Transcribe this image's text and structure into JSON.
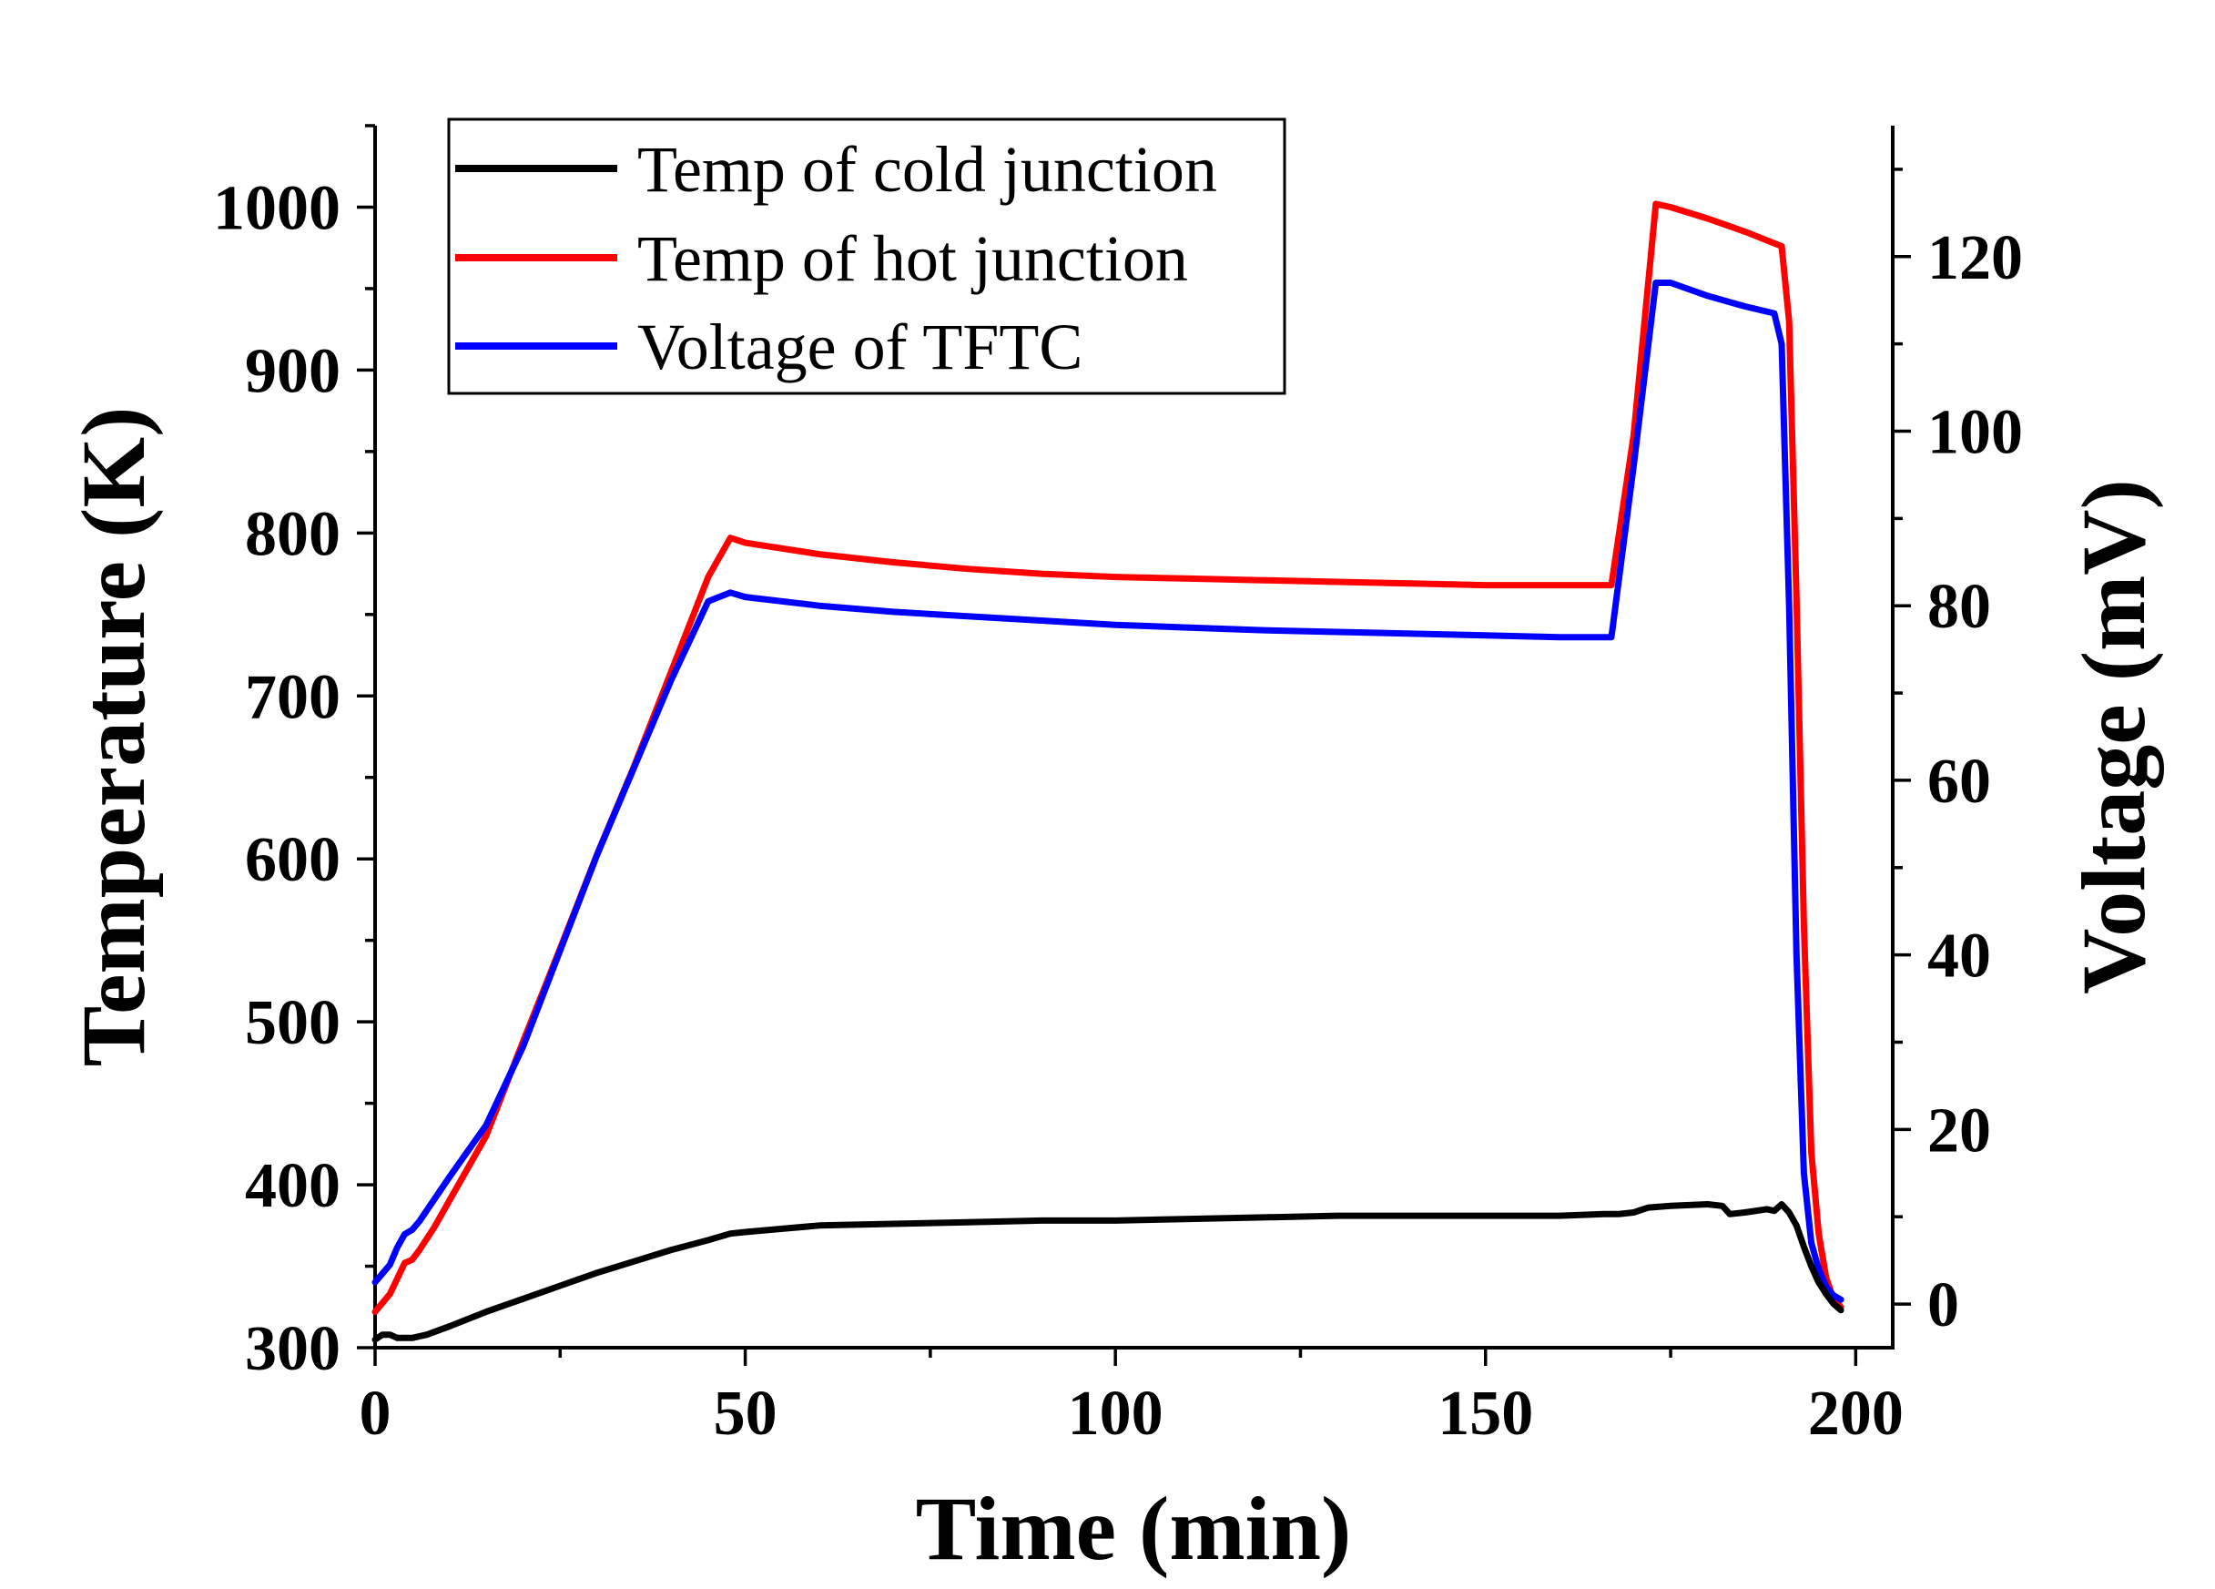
{
  "chart_data": {
    "type": "line",
    "xlabel": "Time (min)",
    "ylabel": "Temperature (K)",
    "y2label": "Voltage (mV)",
    "xlim": [
      0,
      205
    ],
    "ylim": [
      300,
      1050
    ],
    "y2lim": [
      -5,
      135
    ],
    "xticks": [
      0,
      50,
      100,
      150,
      200
    ],
    "yticks": [
      300,
      400,
      500,
      600,
      700,
      800,
      900,
      1000
    ],
    "y2ticks": [
      0,
      20,
      40,
      60,
      80,
      100,
      120
    ],
    "legend_position": "top-left",
    "grid": false,
    "series": [
      {
        "name": "Temp of cold junction",
        "axis": "left",
        "color": "#000000",
        "x": [
          0,
          1,
          2,
          3,
          5,
          7,
          10,
          15,
          20,
          25,
          30,
          35,
          40,
          45,
          48,
          50,
          55,
          60,
          70,
          80,
          90,
          100,
          110,
          120,
          130,
          140,
          150,
          160,
          166,
          168,
          170,
          172,
          175,
          180,
          182,
          183,
          185,
          188,
          189,
          190,
          191,
          192,
          193,
          194,
          195,
          196,
          197,
          198
        ],
        "y": [
          305,
          308,
          308,
          306,
          306,
          308,
          313,
          322,
          330,
          338,
          346,
          353,
          360,
          366,
          370,
          371,
          373,
          375,
          376,
          377,
          378,
          378,
          379,
          380,
          381,
          381,
          381,
          381,
          382,
          382,
          383,
          386,
          387,
          388,
          387,
          382,
          383,
          385,
          384,
          388,
          383,
          375,
          362,
          350,
          340,
          333,
          327,
          323
        ]
      },
      {
        "name": "Temp of hot junction",
        "axis": "left",
        "color": "#ff0000",
        "x": [
          0,
          2,
          4,
          5,
          6,
          8,
          10,
          15,
          20,
          25,
          30,
          35,
          40,
          45,
          48,
          50,
          60,
          70,
          80,
          90,
          100,
          110,
          120,
          130,
          140,
          150,
          160,
          167,
          170,
          173,
          175,
          180,
          185,
          190,
          191,
          192,
          193,
          194,
          195,
          196,
          197,
          198
        ],
        "y": [
          322,
          333,
          352,
          354,
          360,
          374,
          390,
          430,
          488,
          545,
          603,
          657,
          715,
          773,
          797,
          794,
          787,
          782,
          778,
          775,
          773,
          772,
          771,
          770,
          769,
          768,
          768,
          768,
          860,
          1002,
          1000,
          993,
          985,
          976,
          930,
          760,
          560,
          420,
          370,
          343,
          330,
          325
        ]
      },
      {
        "name": "Voltage of TFTC",
        "axis": "right",
        "color": "#0000ff",
        "x": [
          0,
          2,
          3,
          4,
          5,
          6,
          8,
          10,
          15,
          20,
          25,
          30,
          35,
          40,
          45,
          48,
          50,
          60,
          70,
          80,
          90,
          100,
          110,
          120,
          130,
          140,
          150,
          160,
          167,
          170,
          173,
          175,
          180,
          185,
          189,
          190,
          191,
          192,
          193,
          194,
          195,
          196,
          197,
          198
        ],
        "y": [
          2.5,
          4.5,
          6.5,
          8,
          8.5,
          9.5,
          12,
          14.5,
          20.5,
          29.5,
          40.5,
          51.5,
          61.5,
          71.5,
          80.5,
          81.5,
          81,
          80,
          79.3,
          78.8,
          78.3,
          77.8,
          77.5,
          77.2,
          77,
          76.8,
          76.6,
          76.4,
          76.4,
          96,
          117,
          117,
          115.5,
          114.3,
          113.5,
          110,
          80,
          40,
          15,
          7,
          4,
          2,
          1,
          0.5
        ]
      }
    ]
  }
}
